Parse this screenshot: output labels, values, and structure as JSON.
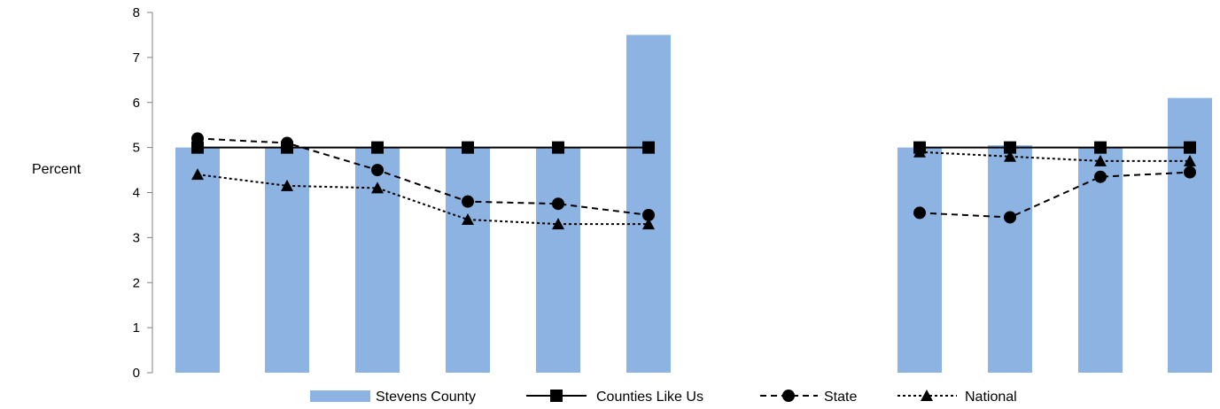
{
  "chart_data": {
    "type": "bar",
    "ylabel": "Percent",
    "ylim": [
      0,
      8
    ],
    "yticks": [
      "0",
      "1",
      "2",
      "3",
      "4",
      "5",
      "6",
      "7",
      "8"
    ],
    "categories": [
      "",
      "",
      "",
      "",
      "",
      "",
      "",
      "",
      "",
      ""
    ],
    "series": [
      {
        "name": "Stevens County",
        "type": "bar",
        "color": "#8db3e2",
        "values": [
          5.0,
          5.0,
          5.0,
          5.0,
          5.0,
          7.5,
          5.0,
          5.05,
          5.0,
          6.1
        ]
      },
      {
        "name": "Counties Like Us",
        "type": "line",
        "marker": "square",
        "dash": "solid",
        "values": [
          5.0,
          5.0,
          5.0,
          5.0,
          5.0,
          5.0,
          5.0,
          5.0,
          5.0,
          5.0
        ]
      },
      {
        "name": "State",
        "type": "line",
        "marker": "circle",
        "dash": "dashed",
        "values": [
          5.2,
          5.1,
          4.5,
          3.8,
          3.75,
          3.5,
          3.55,
          3.45,
          4.35,
          4.45
        ]
      },
      {
        "name": "National",
        "type": "line",
        "marker": "triangle",
        "dash": "dotted",
        "values": [
          4.4,
          4.15,
          4.1,
          3.4,
          3.3,
          3.3,
          4.9,
          4.8,
          4.7,
          4.7
        ]
      }
    ],
    "groups": [
      [
        0,
        1,
        2,
        3,
        4,
        5
      ],
      [
        6,
        7,
        8,
        9
      ]
    ],
    "legend_position": "bottom"
  }
}
